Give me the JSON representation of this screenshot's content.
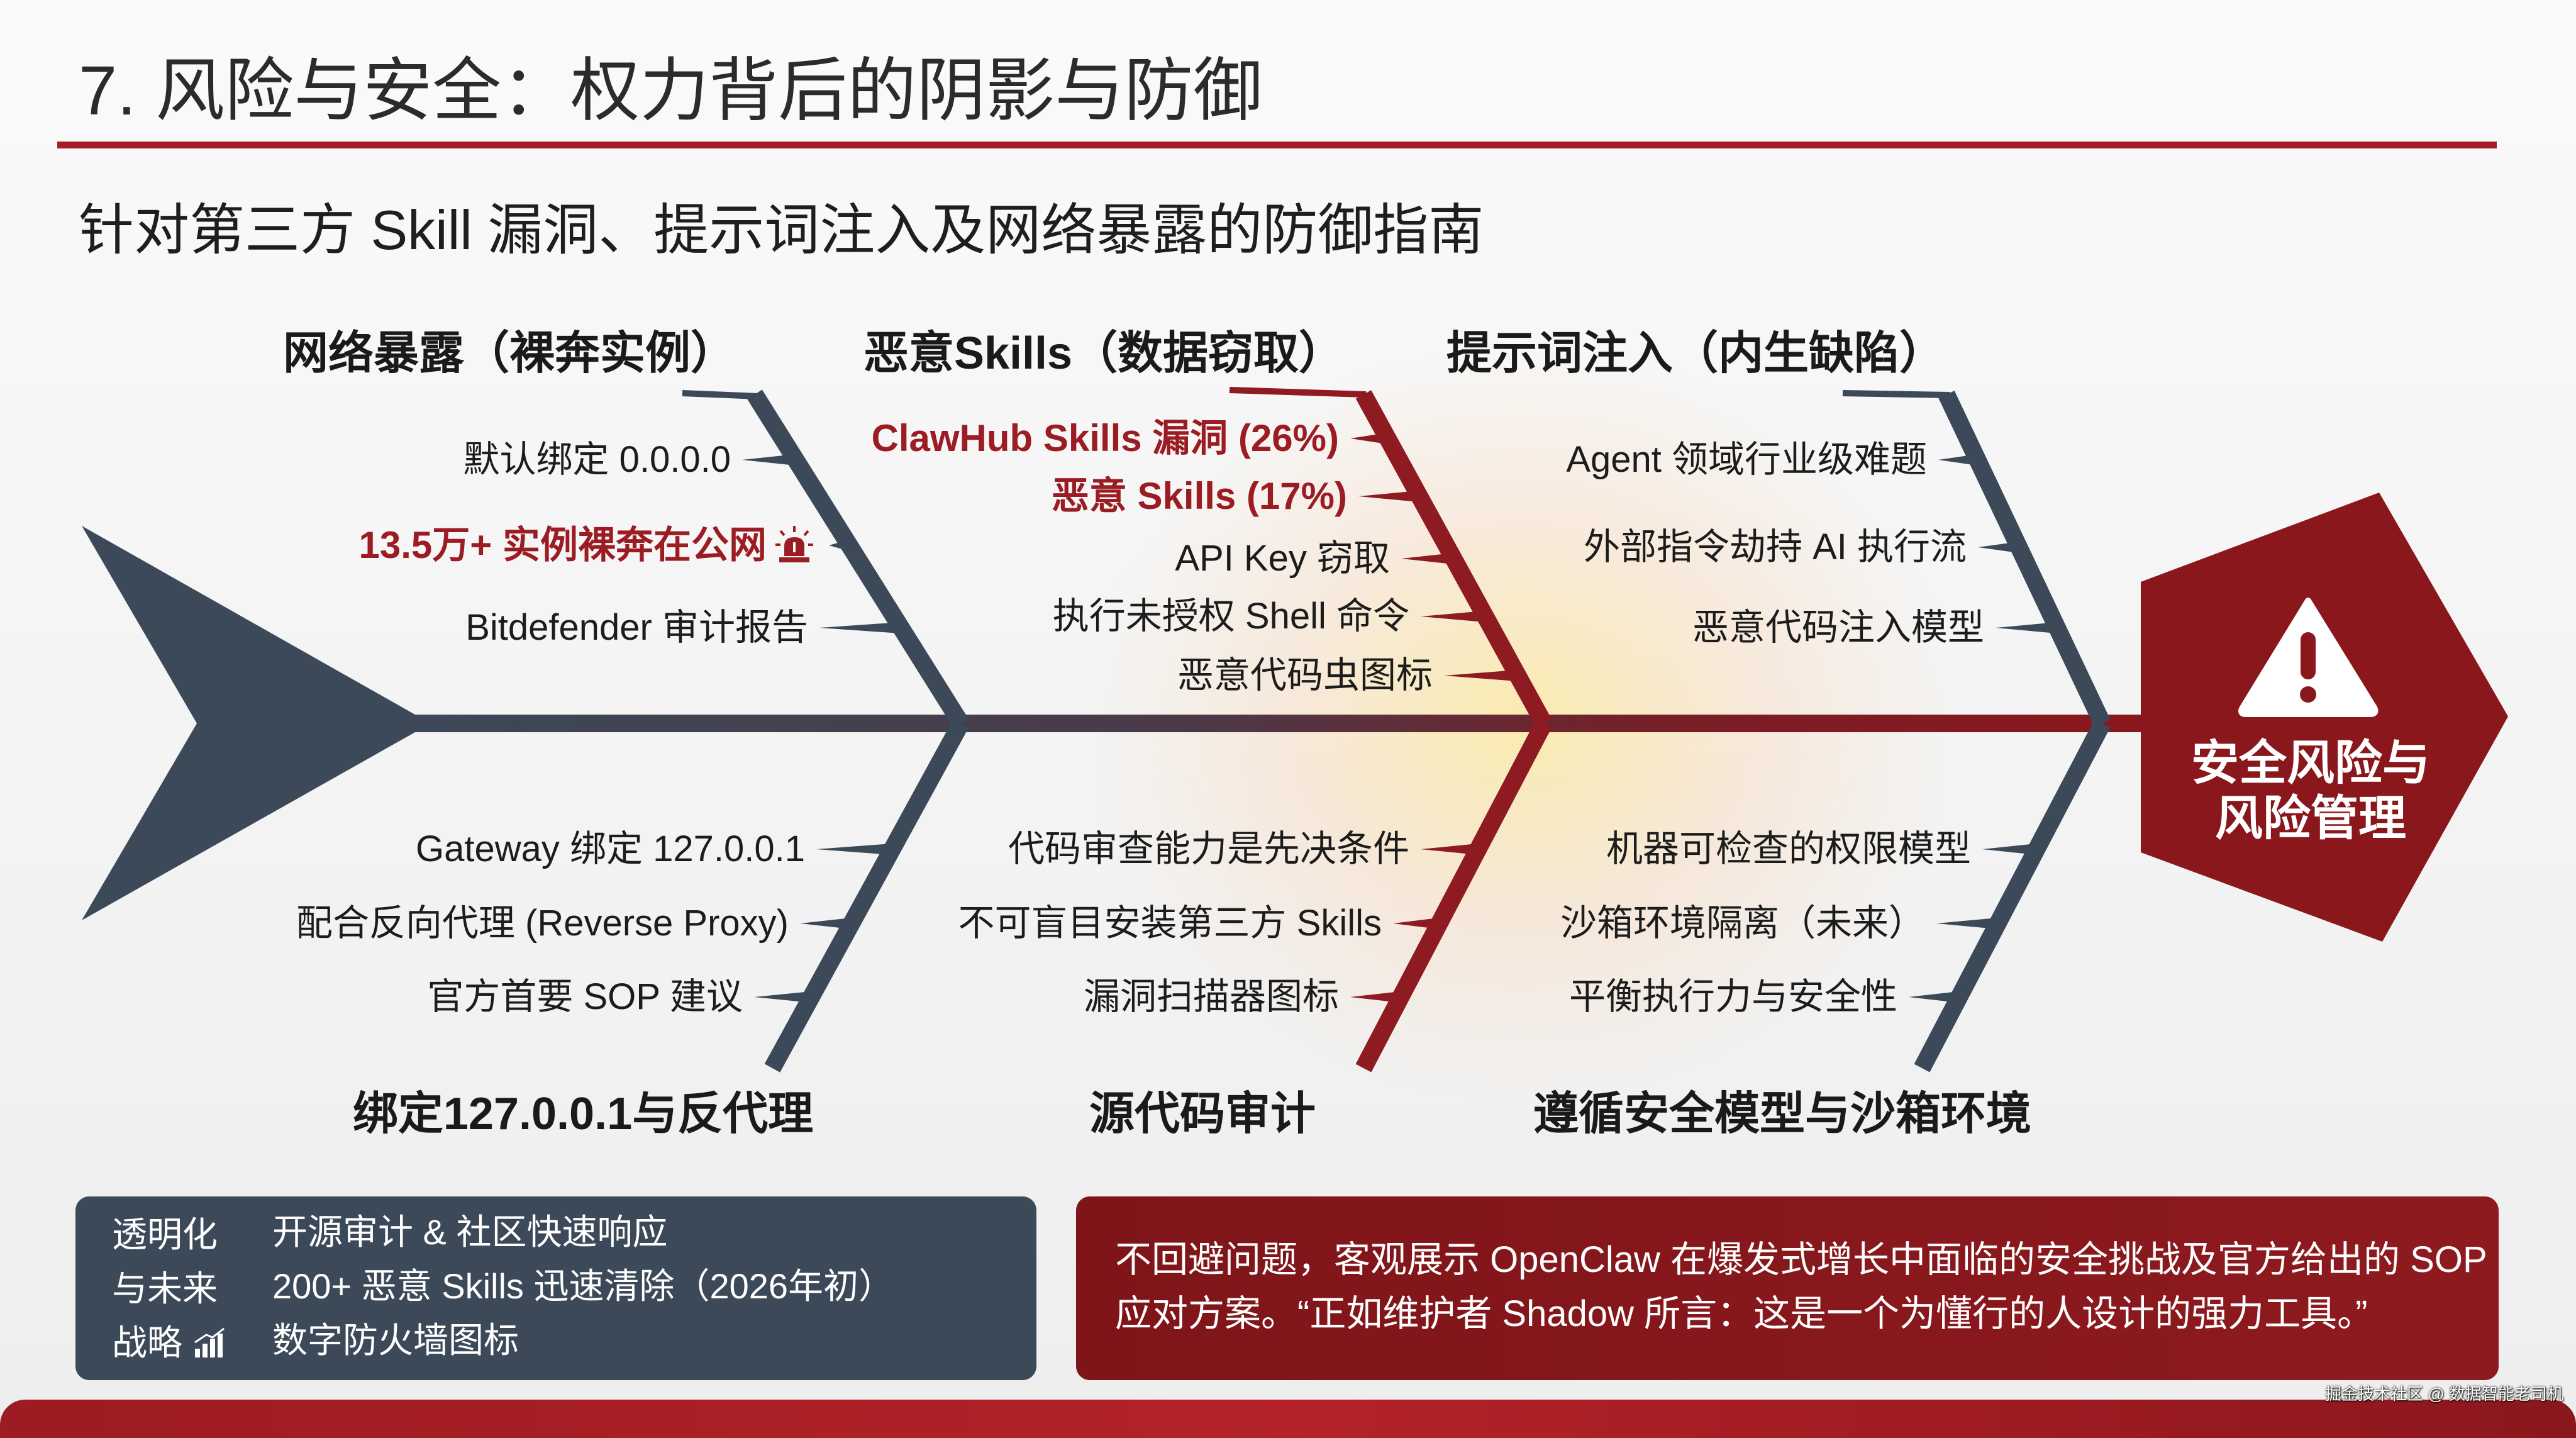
{
  "title": "7. 风险与安全：权力背后的阴影与防御",
  "subtitle": "针对第三方 Skill 漏洞、提示词注入及网络暴露的防御指南",
  "colors": {
    "accent_red": "#9b1c22",
    "slate": "#3c4959",
    "head_red": "#8a171c"
  },
  "diagram": {
    "head": {
      "icon": "warning-triangle-icon",
      "label_line1": "安全风险与",
      "label_line2": "风险管理"
    },
    "upper": [
      {
        "header": "网络暴露（裸奔实例）",
        "items": [
          "默认绑定 0.0.0.0",
          "13.5万+ 实例裸奔在公网",
          "Bitdefender 审计报告"
        ],
        "icon": "alarm-siren-icon"
      },
      {
        "header": "恶意Skills（数据窃取）",
        "items": [
          "ClawHub Skills 漏洞 (26%)",
          "恶意 Skills (17%)",
          "API Key 窃取",
          "执行未授权 Shell 命令",
          "恶意代码虫图标"
        ]
      },
      {
        "header": "提示词注入（内生缺陷）",
        "items": [
          "Agent 领域行业级难题",
          "外部指令劫持 AI 执行流",
          "恶意代码注入模型"
        ]
      }
    ],
    "lower": [
      {
        "header": "绑定127.0.0.1与反代理",
        "items": [
          "Gateway 绑定 127.0.0.1",
          "配合反向代理 (Reverse Proxy)",
          "官方首要 SOP 建议"
        ]
      },
      {
        "header": "源代码审计",
        "items": [
          "代码审查能力是先决条件",
          "不可盲目安装第三方 Skills",
          "漏洞扫描器图标"
        ]
      },
      {
        "header": "遵循安全模型与沙箱环境",
        "items": [
          "机器可检查的权限模型",
          "沙箱环境隔离（未来）",
          "平衡执行力与安全性"
        ]
      }
    ]
  },
  "strategy_box": {
    "label": [
      "透明化",
      "与未来",
      "战略"
    ],
    "icon": "bar-chart-rising-icon",
    "items": [
      "开源审计 & 社区快速响应",
      "200+ 恶意 Skills 迅速清除（2026年初）",
      "数字防火墙图标"
    ]
  },
  "note_box": {
    "lines": [
      "不回避问题，客观展示 OpenClaw 在爆发式增长中面临的安全挑战及官方给出的 SOP",
      "应对方案。“正如维护者 Shadow 所言：这是一个为懂行的人设计的强力工具。”"
    ]
  },
  "watermark": "掘金技术社区 @ 数据智能老司机"
}
